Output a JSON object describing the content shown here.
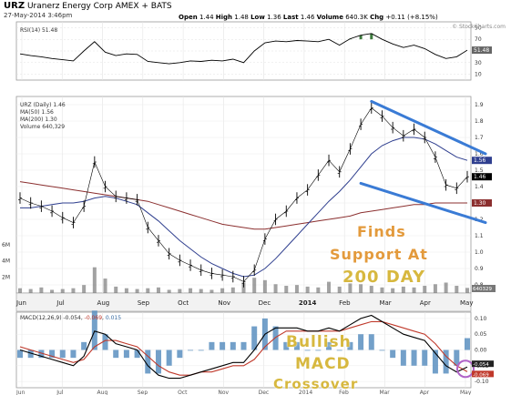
{
  "header": {
    "symbol": "URZ",
    "company": "Uranerz Energy Corp",
    "exchange": "AMEX",
    "provider": "BATS",
    "date": "27-May-2014 3:46pm",
    "open_label": "Open",
    "open": "1.44",
    "high_label": "High",
    "high": "1.48",
    "low_label": "Low",
    "low": "1.36",
    "last_label": "Last",
    "last": "1.46",
    "volume_label": "Volume",
    "volume": "640.3K",
    "chg_label": "Chg",
    "chg": "+0.11 (+8.15%)",
    "brand": "© StockCharts.com"
  },
  "legends": {
    "rsi": "RSI(14) 51.48",
    "price": "URZ (Daily) 1.46",
    "ma50": "MA(50) 1.56",
    "ma200": "MA(200) 1.30",
    "volume": "Volume 640,329",
    "macd_label": "MACD(12,26,9)",
    "macd_value": "-0.054",
    "macd_signal": "-0.069",
    "macd_hist": "0.015"
  },
  "annotations": {
    "support_line1": "Finds",
    "support_line2": "Support At",
    "support_line3": "200 DAY",
    "macd_line1": "Bullish",
    "macd_line2": "MACD",
    "macd_line3": "Crossover"
  },
  "colors": {
    "price": "#000000",
    "ma50": "#2f3f8f",
    "ma200": "#8b2f2f",
    "rsi": "#000000",
    "rsi_overbought_fill": "#3d7a3d",
    "volume": "#7a7a7a",
    "macd_line": "#000000",
    "macd_signal": "#c0392b",
    "macd_hist": "#5a8fc0",
    "trendline": "#3a7bd5",
    "annotation_orange": "#e39a3c",
    "annotation_gold": "#d7b83f",
    "circle": "#b063c8"
  },
  "chart_data": {
    "type": "line",
    "x_labels": [
      "Jun",
      "Jul",
      "Aug",
      "Sep",
      "Oct",
      "Nov",
      "Dec",
      "2014",
      "Feb",
      "Mar",
      "Apr",
      "May"
    ],
    "price_axis": {
      "ticks": [
        "1.9",
        "1.8",
        "1.7",
        "1.6",
        "1.5",
        "1.4",
        "1.3",
        "1.2",
        "1.1",
        "1.0",
        "0.9",
        "0.8"
      ],
      "ylim": [
        0.75,
        1.95
      ],
      "current": "1.46",
      "ma50_tag": "1.56",
      "ma200_tag": "1.30"
    },
    "volume_axis": {
      "ticks": [
        "6M",
        "4M",
        "2M"
      ],
      "tag": "640329"
    },
    "rsi_axis": {
      "ticks": [
        "90",
        "70",
        "50",
        "30",
        "10"
      ],
      "ylim": [
        0,
        100
      ],
      "current": "51.48"
    },
    "macd_axis": {
      "ticks": [
        "0.10",
        "0.05",
        "0.00",
        "-0.05",
        "-0.10"
      ],
      "ylim": [
        -0.12,
        0.12
      ],
      "tags": [
        "-0.069",
        "-0.054"
      ]
    },
    "series": [
      {
        "name": "URZ (Daily)",
        "values": [
          1.33,
          1.3,
          1.28,
          1.25,
          1.21,
          1.18,
          1.28,
          1.55,
          1.4,
          1.34,
          1.33,
          1.32,
          1.15,
          1.07,
          0.99,
          0.95,
          0.92,
          0.89,
          0.87,
          0.86,
          0.85,
          0.82,
          0.89,
          1.08,
          1.2,
          1.25,
          1.33,
          1.38,
          1.47,
          1.56,
          1.49,
          1.63,
          1.78,
          1.88,
          1.83,
          1.76,
          1.71,
          1.75,
          1.7,
          1.58,
          1.41,
          1.39,
          1.46
        ]
      },
      {
        "name": "MA(50)",
        "values": [
          1.27,
          1.27,
          1.28,
          1.29,
          1.3,
          1.3,
          1.31,
          1.33,
          1.34,
          1.33,
          1.31,
          1.29,
          1.24,
          1.19,
          1.13,
          1.07,
          1.02,
          0.97,
          0.93,
          0.9,
          0.87,
          0.85,
          0.86,
          0.9,
          0.96,
          1.03,
          1.1,
          1.17,
          1.24,
          1.31,
          1.37,
          1.44,
          1.52,
          1.6,
          1.65,
          1.68,
          1.7,
          1.7,
          1.69,
          1.66,
          1.62,
          1.58,
          1.56
        ]
      },
      {
        "name": "MA(200)",
        "values": [
          1.43,
          1.42,
          1.41,
          1.4,
          1.39,
          1.38,
          1.37,
          1.36,
          1.35,
          1.34,
          1.33,
          1.32,
          1.31,
          1.29,
          1.27,
          1.25,
          1.23,
          1.21,
          1.19,
          1.17,
          1.16,
          1.15,
          1.14,
          1.14,
          1.15,
          1.16,
          1.17,
          1.18,
          1.19,
          1.2,
          1.21,
          1.22,
          1.24,
          1.25,
          1.26,
          1.27,
          1.28,
          1.29,
          1.29,
          1.3,
          1.3,
          1.3,
          1.3
        ]
      },
      {
        "name": "RSI(14)",
        "values": [
          45,
          42,
          40,
          37,
          35,
          33,
          50,
          66,
          48,
          42,
          45,
          44,
          32,
          30,
          28,
          30,
          33,
          32,
          34,
          33,
          36,
          30,
          50,
          64,
          67,
          66,
          68,
          67,
          66,
          70,
          60,
          71,
          77,
          80,
          70,
          62,
          56,
          60,
          54,
          44,
          37,
          40,
          51.48
        ]
      },
      {
        "name": "Volume",
        "values": [
          0.6,
          0.5,
          0.7,
          0.4,
          0.5,
          0.6,
          1.0,
          3.2,
          1.8,
          0.8,
          0.6,
          0.5,
          0.6,
          0.7,
          0.4,
          0.5,
          0.6,
          0.5,
          0.4,
          0.6,
          0.7,
          1.3,
          1.9,
          1.6,
          1.1,
          0.9,
          1.0,
          0.8,
          0.7,
          1.4,
          0.8,
          1.2,
          1.1,
          0.9,
          0.7,
          0.6,
          0.8,
          0.7,
          0.9,
          1.1,
          1.3,
          0.9,
          0.64
        ]
      },
      {
        "name": "MACD",
        "values": [
          0.0,
          -0.01,
          -0.02,
          -0.03,
          -0.04,
          -0.05,
          -0.02,
          0.06,
          0.05,
          0.02,
          0.01,
          0.0,
          -0.05,
          -0.08,
          -0.09,
          -0.09,
          -0.08,
          -0.07,
          -0.06,
          -0.05,
          -0.04,
          -0.04,
          0.0,
          0.05,
          0.07,
          0.07,
          0.07,
          0.06,
          0.06,
          0.07,
          0.06,
          0.08,
          0.1,
          0.11,
          0.09,
          0.07,
          0.05,
          0.04,
          0.03,
          -0.01,
          -0.05,
          -0.07,
          -0.054
        ]
      },
      {
        "name": "Signal",
        "values": [
          0.01,
          0.0,
          -0.01,
          -0.02,
          -0.03,
          -0.04,
          -0.03,
          0.01,
          0.03,
          0.03,
          0.02,
          0.01,
          -0.02,
          -0.05,
          -0.07,
          -0.08,
          -0.08,
          -0.07,
          -0.07,
          -0.06,
          -0.05,
          -0.05,
          -0.03,
          0.01,
          0.04,
          0.06,
          0.06,
          0.06,
          0.06,
          0.06,
          0.06,
          0.07,
          0.08,
          0.09,
          0.09,
          0.08,
          0.07,
          0.06,
          0.05,
          0.02,
          -0.02,
          -0.05,
          -0.069
        ]
      }
    ]
  }
}
